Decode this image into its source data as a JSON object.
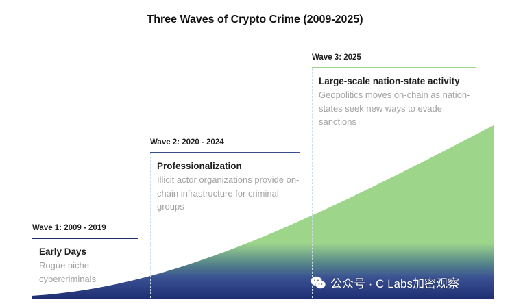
{
  "title": "Three Waves of Crypto Crime (2009-2025)",
  "waves": [
    {
      "label": "Wave 1: 2009 - 2019",
      "heading": "Early Days",
      "description": "Rogue niche cybercriminals",
      "rule_color": "#1e2d6b"
    },
    {
      "label": "Wave 2: 2020 - 2024",
      "heading": "Professionalization",
      "description": "Illicit actor organizations provide on-chain infrastructure for criminal groups",
      "rule_color": "#3b4c8f"
    },
    {
      "label": "Wave 3: 2025",
      "heading": "Large-scale nation-state activity",
      "description": "Geopolitics moves on-chain as nation-states seek new ways to evade sanctions",
      "rule_color": "#9dd58b"
    }
  ],
  "colors": {
    "curve_top": "#9dd58b",
    "curve_bottom": "#1f2f73",
    "dashed_line": "#c9dde6"
  },
  "watermark": {
    "icon": "wechat-icon",
    "text": "公众号 · C Labs加密观察"
  }
}
